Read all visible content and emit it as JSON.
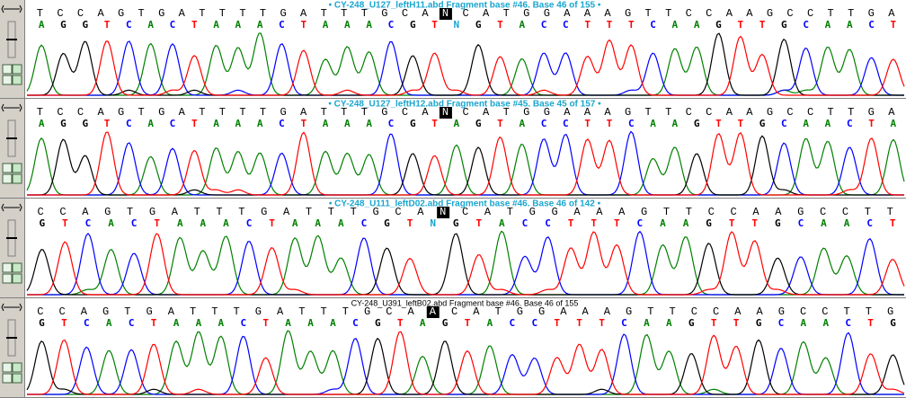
{
  "panels": [
    {
      "title": "• CY-248_U127_leftH11.abd Fragment base #46. Base 46 of 155 •",
      "bases_before": [
        "T",
        "C",
        "C",
        "A",
        "G",
        "T",
        "G",
        "A",
        "T",
        "T",
        "T",
        "T",
        "G",
        "A",
        "T",
        "T",
        "T",
        "G",
        "C",
        "A"
      ],
      "highlighted_base": "N",
      "bases_after": [
        "C",
        "A",
        "T",
        "G",
        "G",
        "A",
        "A",
        "A",
        "G",
        "T",
        "T",
        "C",
        "C",
        "A",
        "A",
        "G",
        "C",
        "C",
        "T",
        "T",
        "G",
        "A"
      ],
      "calls": [
        "A",
        "G",
        "G",
        "T",
        "C",
        "A",
        "C",
        "T",
        "A",
        "A",
        "A",
        "C",
        "T",
        "A",
        "A",
        "A",
        "C",
        "G",
        "T",
        "N",
        "G",
        "T",
        "A",
        "C",
        "C",
        "T",
        "T",
        "T",
        "C",
        "A",
        "A",
        "G",
        "T",
        "T",
        "G",
        "C",
        "A",
        "A",
        "C",
        "T"
      ]
    },
    {
      "title": "• CY-248_U127_leftH12.abd Fragment base #45. Base 45 of 157 •",
      "bases_before": [
        "T",
        "C",
        "C",
        "A",
        "G",
        "T",
        "G",
        "A",
        "T",
        "T",
        "T",
        "T",
        "G",
        "A",
        "T",
        "T",
        "T",
        "G",
        "C",
        "A"
      ],
      "highlighted_base": "N",
      "bases_after": [
        "C",
        "A",
        "T",
        "G",
        "G",
        "A",
        "A",
        "A",
        "G",
        "T",
        "T",
        "C",
        "C",
        "A",
        "A",
        "G",
        "C",
        "C",
        "T",
        "T",
        "G",
        "A"
      ],
      "calls": [
        "A",
        "G",
        "G",
        "T",
        "C",
        "A",
        "C",
        "T",
        "A",
        "A",
        "A",
        "C",
        "T",
        "A",
        "A",
        "A",
        "C",
        "G",
        "T",
        "A",
        "G",
        "T",
        "A",
        "C",
        "C",
        "T",
        "T",
        "C",
        "A",
        "A",
        "G",
        "T",
        "T",
        "G",
        "C",
        "A",
        "A",
        "C",
        "T",
        "A"
      ]
    },
    {
      "title": "• CY-248_U111_leftD02.abd Fragment base #46. Base 46 of 142 •",
      "bases_before": [
        "C",
        "C",
        "A",
        "G",
        "T",
        "G",
        "A",
        "T",
        "T",
        "T",
        "G",
        "A",
        "T",
        "T",
        "T",
        "G",
        "C",
        "A"
      ],
      "highlighted_base": "N",
      "bases_after": [
        "C",
        "A",
        "T",
        "G",
        "G",
        "A",
        "A",
        "A",
        "G",
        "T",
        "T",
        "C",
        "C",
        "A",
        "A",
        "G",
        "C",
        "C",
        "T",
        "T"
      ],
      "calls": [
        "G",
        "T",
        "C",
        "A",
        "C",
        "T",
        "A",
        "A",
        "A",
        "C",
        "T",
        "A",
        "A",
        "A",
        "C",
        "G",
        "T",
        "N",
        "G",
        "T",
        "A",
        "C",
        "C",
        "T",
        "T",
        "T",
        "C",
        "A",
        "A",
        "G",
        "T",
        "T",
        "G",
        "C",
        "A",
        "A",
        "C",
        "T"
      ]
    },
    {
      "title": "CY-248_U391_leftB02.abd Fragment base #46. Base 46 of 155",
      "bases_before": [
        "C",
        "C",
        "A",
        "G",
        "T",
        "G",
        "A",
        "T",
        "T",
        "T",
        "G",
        "A",
        "T",
        "T",
        "T",
        "G",
        "C",
        "A"
      ],
      "highlighted_base": "A",
      "bases_after": [
        "C",
        "A",
        "T",
        "G",
        "G",
        "A",
        "A",
        "A",
        "G",
        "T",
        "T",
        "C",
        "C",
        "A",
        "A",
        "G",
        "C",
        "C",
        "T",
        "T",
        "G"
      ],
      "calls": [
        "G",
        "T",
        "C",
        "A",
        "C",
        "T",
        "A",
        "A",
        "A",
        "C",
        "T",
        "A",
        "A",
        "A",
        "C",
        "G",
        "T",
        "A",
        "G",
        "T",
        "A",
        "C",
        "C",
        "T",
        "T",
        "T",
        "C",
        "A",
        "A",
        "G",
        "T",
        "T",
        "G",
        "C",
        "A",
        "A",
        "C",
        "T",
        "G"
      ]
    }
  ]
}
